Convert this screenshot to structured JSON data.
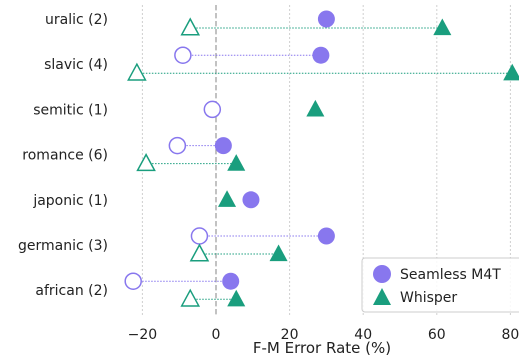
{
  "chart_data": {
    "type": "scatter",
    "xlabel": "F-M Error Rate (%)",
    "xlim": [
      -25,
      82
    ],
    "xticks": [
      -20,
      0,
      20,
      40,
      60,
      80
    ],
    "xtick_labels": [
      "−20",
      "0",
      "20",
      "40",
      "60",
      "80"
    ],
    "categories": [
      "uralic (2)",
      "slavic (4)",
      "semitic (1)",
      "romance (6)",
      "japonic (1)",
      "germanic (3)",
      "african (2)"
    ],
    "grid": true,
    "legend": "bottom-right",
    "series": [
      {
        "name": "Seamless M4T",
        "color": "#8877ee",
        "marker": "circle",
        "filled": [
          30,
          28.5,
          null,
          2,
          9.5,
          30,
          4
        ],
        "hollow": [
          null,
          -9,
          -1,
          -10.5,
          null,
          -4.5,
          -22.5
        ]
      },
      {
        "name": "Whisper",
        "color": "#1a9e7e",
        "marker": "triangle",
        "filled": [
          61.5,
          80.5,
          27,
          5.5,
          3,
          17,
          5.5
        ],
        "hollow": [
          -7,
          -21.5,
          null,
          -19,
          null,
          -4.5,
          -7
        ]
      }
    ]
  }
}
